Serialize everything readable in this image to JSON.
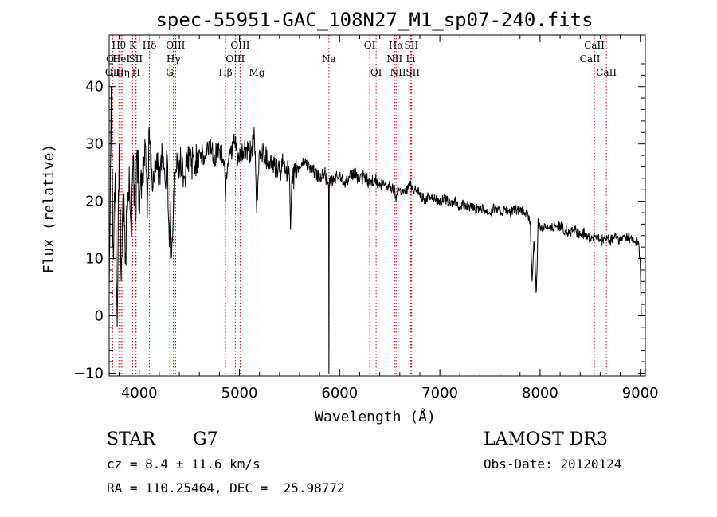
{
  "chart_data": {
    "type": "line",
    "title": "spec-55951-GAC_108N27_M1_sp07-240.fits",
    "xlabel": "Wavelength (Å)",
    "ylabel": "Flux (relative)",
    "xlim": [
      3700,
      9050
    ],
    "ylim": [
      -10.5,
      49
    ],
    "x_ticks": [
      4000,
      5000,
      6000,
      7000,
      8000,
      9000
    ],
    "x_tick_labels": [
      "4000",
      "5000",
      "6000",
      "7000",
      "8000",
      "9000"
    ],
    "y_ticks": [
      -10,
      0,
      10,
      20,
      30,
      40
    ],
    "y_tick_labels": [
      "−10",
      "0",
      "10",
      "20",
      "30",
      "40"
    ],
    "series": [
      {
        "name": "flux",
        "x": [
          3700,
          3720,
          3740,
          3760,
          3780,
          3800,
          3820,
          3840,
          3860,
          3880,
          3900,
          3920,
          3940,
          3960,
          3980,
          4000,
          4030,
          4060,
          4080,
          4100,
          4130,
          4160,
          4200,
          4230,
          4260,
          4280,
          4300,
          4310,
          4320,
          4340,
          4360,
          4400,
          4450,
          4500,
          4550,
          4600,
          4650,
          4700,
          4750,
          4800,
          4850,
          4861,
          4870,
          4900,
          4950,
          5000,
          5050,
          5100,
          5150,
          5172,
          5200,
          5250,
          5300,
          5350,
          5400,
          5450,
          5500,
          5510,
          5520,
          5550,
          5600,
          5650,
          5700,
          5750,
          5800,
          5850,
          5880,
          5890,
          5893,
          5896,
          5900,
          5910,
          5950,
          6000,
          6050,
          6100,
          6150,
          6200,
          6250,
          6300,
          6350,
          6400,
          6450,
          6500,
          6550,
          6563,
          6580,
          6600,
          6650,
          6700,
          6750,
          6800,
          6850,
          6900,
          6950,
          7000,
          7050,
          7100,
          7150,
          7200,
          7250,
          7300,
          7350,
          7400,
          7450,
          7500,
          7550,
          7600,
          7650,
          7700,
          7750,
          7800,
          7850,
          7880,
          7900,
          7910,
          7920,
          7930,
          7940,
          7950,
          7960,
          7970,
          7980,
          7990,
          8000,
          8050,
          8100,
          8150,
          8200,
          8250,
          8300,
          8350,
          8400,
          8450,
          8500,
          8550,
          8600,
          8650,
          8700,
          8750,
          8800,
          8850,
          8900,
          8950,
          8980,
          9000,
          9010
        ],
        "y": [
          5,
          40,
          12,
          25,
          -2,
          30,
          6,
          22,
          9,
          18,
          26,
          14,
          28,
          16,
          29,
          20,
          24,
          30,
          17,
          33,
          22,
          27,
          25,
          29,
          23,
          28,
          12,
          20,
          10,
          18,
          25,
          27,
          24,
          28,
          26,
          29,
          27,
          30,
          28,
          29,
          27,
          20,
          25,
          29,
          30,
          27,
          29,
          28,
          31,
          18,
          29,
          28,
          27,
          26,
          25,
          27,
          24,
          15,
          22,
          25,
          26,
          27,
          26,
          25,
          24,
          25,
          23,
          22,
          -10,
          22,
          24,
          23,
          24,
          24.5,
          23.5,
          24,
          25,
          23.5,
          24.5,
          23,
          24,
          22.5,
          23,
          22.5,
          22,
          20,
          22.5,
          22,
          21.5,
          23,
          22,
          21.5,
          20,
          21,
          20.5,
          20,
          20.5,
          19.5,
          20,
          19,
          19.5,
          19,
          18.5,
          19,
          18.5,
          18,
          19,
          18,
          18.5,
          18,
          18.5,
          18.2,
          18,
          17.5,
          16.5,
          12,
          6,
          9,
          13,
          10,
          4,
          8,
          17,
          16,
          15,
          16,
          15,
          16,
          15.5,
          15,
          14.5,
          15,
          14,
          14.5,
          13.5,
          14,
          13,
          13.5,
          13,
          14,
          13,
          14,
          13.5,
          13,
          13,
          9,
          0
        ]
      }
    ],
    "spectral_lines": [
      {
        "label": "OI",
        "x": 3727,
        "row": 2
      },
      {
        "label": "OII",
        "x": 3735,
        "row": 3
      },
      {
        "label": "Hθ",
        "x": 3797,
        "row": 1
      },
      {
        "label": "HeI",
        "x": 3820,
        "row": 2
      },
      {
        "label": "Hη",
        "x": 3835,
        "row": 3
      },
      {
        "label": "K",
        "x": 3934,
        "row": 1
      },
      {
        "label": "SII",
        "x": 3965,
        "row": 2
      },
      {
        "label": "H",
        "x": 3969,
        "row": 3
      },
      {
        "label": "Hδ",
        "x": 4102,
        "row": 1
      },
      {
        "label": "OIII",
        "x": 4363,
        "row": 1
      },
      {
        "label": "Hγ",
        "x": 4341,
        "row": 2
      },
      {
        "label": "G",
        "x": 4305,
        "row": 3
      },
      {
        "label": "OIII",
        "x": 5007,
        "row": 1
      },
      {
        "label": "OIII",
        "x": 4959,
        "row": 2
      },
      {
        "label": "Hβ",
        "x": 4861,
        "row": 3
      },
      {
        "label": "Mg",
        "x": 5175,
        "row": 3
      },
      {
        "label": "Na",
        "x": 5893,
        "row": 2
      },
      {
        "label": "OI",
        "x": 6300,
        "row": 1
      },
      {
        "label": "OI",
        "x": 6364,
        "row": 3
      },
      {
        "label": "Hα",
        "x": 6563,
        "row": 1
      },
      {
        "label": "SII",
        "x": 6716,
        "row": 1
      },
      {
        "label": "NII",
        "x": 6548,
        "row": 2
      },
      {
        "label": "Li",
        "x": 6708,
        "row": 2
      },
      {
        "label": "NII",
        "x": 6583,
        "row": 3
      },
      {
        "label": "SII",
        "x": 6731,
        "row": 3
      },
      {
        "label": "CaII",
        "x": 8542,
        "row": 1
      },
      {
        "label": "CaII",
        "x": 8498,
        "row": 2
      },
      {
        "label": "CaII",
        "x": 8662,
        "row": 3
      }
    ],
    "colors": {
      "spectrum": "#000000",
      "line_markers": "#cc0000",
      "background": "#ffffff"
    }
  },
  "info": {
    "object_class": "STAR",
    "subclass": "G7",
    "survey": "LAMOST DR3",
    "redshift": "cz = 8.4 ± 11.6 km/s",
    "obs_date": "Obs-Date: 20120124",
    "coords": "RA = 110.25464, DEC =  25.98772"
  }
}
